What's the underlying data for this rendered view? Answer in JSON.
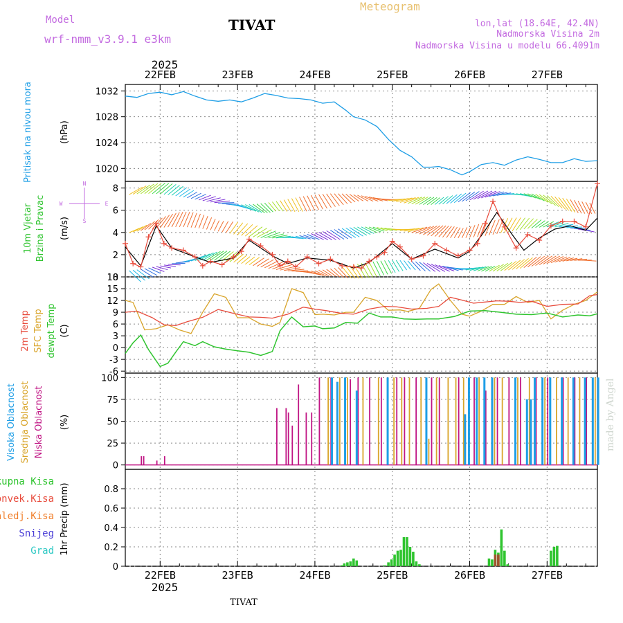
{
  "header": {
    "model_label": "Model",
    "model_name": "wrf-nmm_v3.9.1 e3km",
    "station": "TIVAT",
    "meteogram": "Meteogram",
    "lonlat": "lon,lat (18.64E, 42.4N)",
    "elevation": "Nadmorska Visina 2m",
    "model_elevation": "Nadmorska Visina u modelu 66.4091m",
    "year_top": "2025",
    "year_bottom": "2025",
    "footer_station": "TIVAT",
    "watermark": "made by Angel"
  },
  "colors": {
    "pressure": "#1e9ee6",
    "t2m": "#e84c3d",
    "sfc": "#d9a52b",
    "dew": "#2fc42f",
    "high_cloud": "#1e9ee6",
    "mid_cloud": "#d9a52b",
    "low_cloud": "#c01584",
    "precip": "#2fc42f",
    "conv": "#e84c3d",
    "frz": "#f07f2b",
    "snow": "#4b3fd6",
    "hail": "#2fc9c4",
    "wind_label": "#2fc42f",
    "compass": "#c36be0"
  },
  "chart_data": [
    {
      "type": "line",
      "panel": "pressure",
      "ylabel_title": "Pritisak na nivou mora",
      "ylabel_unit": "(hPa)",
      "ylim": [
        1018,
        1033
      ],
      "yticks": [
        1020,
        1024,
        1028,
        1032
      ],
      "x_unit": "days from 22FEB 00UTC",
      "xlim": [
        -0.45,
        5.65
      ],
      "series": [
        {
          "name": "Pressure",
          "x": [
            -0.45,
            -0.3,
            -0.15,
            0,
            0.15,
            0.3,
            0.45,
            0.6,
            0.75,
            0.9,
            1.05,
            1.2,
            1.35,
            1.5,
            1.65,
            1.8,
            1.95,
            2.1,
            2.25,
            2.4,
            2.5,
            2.65,
            2.8,
            2.95,
            3.1,
            3.25,
            3.4,
            3.5,
            3.6,
            3.75,
            3.9,
            4.0,
            4.15,
            4.3,
            4.45,
            4.6,
            4.75,
            4.9,
            5.05,
            5.2,
            5.35,
            5.5,
            5.65
          ],
          "values": [
            1031.2,
            1031.0,
            1031.6,
            1031.8,
            1031.4,
            1031.9,
            1031.2,
            1030.6,
            1030.4,
            1030.6,
            1030.3,
            1030.9,
            1031.6,
            1031.3,
            1030.9,
            1030.8,
            1030.6,
            1030.1,
            1030.3,
            1029.0,
            1028.0,
            1027.5,
            1026.5,
            1024.5,
            1022.8,
            1021.8,
            1020.2,
            1020.2,
            1020.3,
            1019.8,
            1019.0,
            1019.5,
            1020.6,
            1020.9,
            1020.5,
            1021.3,
            1021.8,
            1021.4,
            1020.9,
            1020.9,
            1021.5,
            1021.1,
            1021.2
          ]
        }
      ]
    },
    {
      "type": "line",
      "panel": "wind",
      "ylabel_title": "10m Vjetar",
      "ylabel_sub": "Brzina i Pravac",
      "ylabel_unit": "(m/s)",
      "compass": [
        "N",
        "W",
        "E",
        "S"
      ],
      "ylim": [
        0,
        8.6
      ],
      "yticks": [
        0,
        2,
        4,
        6,
        8
      ],
      "xlim": [
        -0.45,
        5.65
      ],
      "series": [
        {
          "name": "Wind speed",
          "x": [
            -0.45,
            -0.35,
            -0.25,
            -0.15,
            -0.05,
            0.05,
            0.15,
            0.3,
            0.45,
            0.55,
            0.65,
            0.8,
            0.95,
            1.05,
            1.15,
            1.3,
            1.45,
            1.55,
            1.65,
            1.75,
            1.9,
            2.05,
            2.2,
            2.35,
            2.5,
            2.6,
            2.7,
            2.8,
            2.9,
            3.0,
            3.1,
            3.25,
            3.4,
            3.55,
            3.7,
            3.85,
            4.0,
            4.1,
            4.2,
            4.3,
            4.45,
            4.6,
            4.75,
            4.9,
            5.05,
            5.2,
            5.35,
            5.5,
            5.65
          ],
          "values": [
            3.0,
            1.2,
            0.9,
            3.6,
            4.8,
            3.0,
            2.6,
            2.4,
            1.8,
            1.0,
            1.4,
            1.1,
            1.8,
            2.3,
            3.4,
            2.8,
            2.0,
            1.0,
            1.4,
            0.9,
            1.8,
            1.2,
            1.6,
            1.0,
            0.9,
            0.8,
            1.4,
            1.8,
            2.2,
            3.2,
            2.7,
            1.6,
            1.9,
            3.0,
            2.4,
            1.9,
            2.4,
            3.0,
            4.8,
            6.8,
            4.5,
            2.6,
            3.8,
            3.3,
            4.6,
            5.0,
            5.0,
            4.5,
            8.4
          ]
        },
        {
          "name": "Wind speed (model)",
          "x": [
            -0.45,
            -0.25,
            -0.05,
            0.15,
            0.45,
            0.65,
            0.95,
            1.15,
            1.45,
            1.65,
            1.9,
            2.2,
            2.5,
            2.7,
            3.0,
            3.25,
            3.55,
            3.85,
            4.0,
            4.2,
            4.35,
            4.55,
            4.7,
            4.9,
            5.1,
            5.3,
            5.5,
            5.65
          ],
          "values": [
            2.7,
            1.0,
            4.6,
            2.6,
            1.8,
            1.3,
            1.7,
            3.3,
            1.9,
            1.2,
            1.7,
            1.5,
            0.8,
            1.3,
            3.0,
            1.6,
            2.5,
            1.7,
            2.3,
            4.2,
            5.8,
            3.8,
            2.4,
            3.5,
            4.3,
            4.6,
            4.2,
            5.3
          ]
        }
      ],
      "wind_rows": [
        1,
        4,
        7
      ]
    },
    {
      "type": "line",
      "panel": "temperature",
      "ylabel_t2m": "2m Temp",
      "ylabel_sfc": "SFC Temp",
      "ylabel_dew": "dewpt Temp",
      "ylabel_unit": "(C)",
      "ylim": [
        -6.5,
        18
      ],
      "yticks": [
        -6,
        -3,
        0,
        3,
        6,
        9,
        12,
        15,
        18
      ],
      "xlim": [
        -0.45,
        5.65
      ],
      "series": [
        {
          "name": "2m Temp",
          "x": [
            -0.45,
            -0.3,
            -0.1,
            0.05,
            0.2,
            0.35,
            0.55,
            0.75,
            0.95,
            1.15,
            1.3,
            1.45,
            1.65,
            1.85,
            2.0,
            2.15,
            2.35,
            2.5,
            2.7,
            2.9,
            3.05,
            3.25,
            3.45,
            3.6,
            3.75,
            3.9,
            4.05,
            4.2,
            4.35,
            4.5,
            4.65,
            4.8,
            5.0,
            5.2,
            5.4,
            5.55,
            5.65
          ],
          "values": [
            9.0,
            9.3,
            7.6,
            5.8,
            5.6,
            6.6,
            7.7,
            9.7,
            8.7,
            7.8,
            7.7,
            7.5,
            8.5,
            10.3,
            9.8,
            9.4,
            8.7,
            8.5,
            9.8,
            10.5,
            10.4,
            9.8,
            10.0,
            10.5,
            12.8,
            12.1,
            11.3,
            11.6,
            11.9,
            11.8,
            11.5,
            11.8,
            10.5,
            11.0,
            11.1,
            13.2,
            13.5
          ]
        },
        {
          "name": "SFC Temp",
          "x": [
            -0.45,
            -0.35,
            -0.2,
            -0.05,
            0.1,
            0.25,
            0.4,
            0.55,
            0.7,
            0.85,
            1.0,
            1.15,
            1.3,
            1.45,
            1.55,
            1.7,
            1.85,
            2.0,
            2.1,
            2.25,
            2.4,
            2.5,
            2.65,
            2.8,
            2.95,
            3.1,
            3.2,
            3.35,
            3.5,
            3.6,
            3.75,
            3.9,
            4.0,
            4.15,
            4.3,
            4.45,
            4.6,
            4.75,
            4.9,
            5.05,
            5.2,
            5.35,
            5.5,
            5.65
          ],
          "values": [
            12.0,
            11.5,
            4.5,
            4.8,
            5.8,
            4.5,
            3.6,
            9.0,
            13.7,
            12.8,
            7.6,
            7.6,
            6.0,
            5.4,
            6.4,
            15.0,
            14.0,
            8.4,
            8.5,
            8.3,
            9.0,
            9.0,
            12.8,
            12.0,
            9.5,
            9.6,
            9.2,
            10.0,
            14.8,
            16.2,
            12.0,
            8.5,
            8.0,
            9.3,
            11.0,
            11.0,
            13.0,
            11.5,
            12.0,
            7.3,
            9.5,
            11.0,
            12.0,
            14.2
          ]
        },
        {
          "name": "Dewpoint",
          "x": [
            -0.45,
            -0.35,
            -0.25,
            -0.15,
            0.0,
            0.1,
            0.2,
            0.3,
            0.45,
            0.55,
            0.7,
            0.85,
            1.0,
            1.15,
            1.3,
            1.45,
            1.55,
            1.7,
            1.85,
            2.0,
            2.1,
            2.25,
            2.4,
            2.55,
            2.7,
            2.85,
            3.0,
            3.15,
            3.3,
            3.45,
            3.6,
            3.8,
            4.0,
            4.2,
            4.4,
            4.6,
            4.8,
            5.0,
            5.2,
            5.4,
            5.55,
            5.65
          ],
          "values": [
            -1.5,
            1.2,
            3.2,
            -0.5,
            -4.8,
            -4.0,
            -1.2,
            1.5,
            0.5,
            1.5,
            0.2,
            -0.4,
            -0.8,
            -1.2,
            -2.0,
            -1.0,
            4.3,
            7.8,
            5.3,
            5.5,
            4.8,
            5.0,
            6.4,
            6.2,
            8.8,
            7.8,
            7.8,
            7.3,
            7.2,
            7.3,
            7.3,
            7.9,
            9.3,
            9.4,
            9.0,
            8.5,
            8.4,
            8.8,
            7.8,
            8.3,
            8.1,
            8.6
          ]
        }
      ]
    },
    {
      "type": "bar",
      "panel": "cloud",
      "ylabel_high": "Visoka Oblacnost",
      "ylabel_mid": "Srednja Oblacnost",
      "ylabel_low": "Niska Oblacnost",
      "ylabel_unit": "(%)",
      "ylim": [
        -5,
        105
      ],
      "yticks": [
        0,
        25,
        50,
        75,
        100
      ],
      "xlim": [
        -0.45,
        5.65
      ],
      "series": [
        {
          "name": "Low cloud",
          "x": [
            -0.25,
            -0.22,
            -0.05,
            0.05,
            1.5,
            1.62,
            1.65,
            1.7,
            1.78,
            1.88,
            1.95,
            2.05,
            2.2,
            2.45,
            2.55,
            2.7,
            2.85,
            3.05,
            3.15,
            3.3,
            3.5,
            3.6,
            3.85,
            4.05,
            4.2,
            4.35,
            4.5,
            4.65,
            4.85,
            5.0,
            5.2,
            5.35,
            5.5
          ],
          "values": [
            10,
            10,
            5,
            10,
            65,
            65,
            60,
            45,
            92,
            60,
            60,
            100,
            100,
            98,
            100,
            100,
            100,
            100,
            100,
            100,
            100,
            100,
            100,
            100,
            85,
            100,
            100,
            100,
            100,
            100,
            100,
            100,
            100
          ]
        },
        {
          "name": "Mid cloud",
          "x": [
            2.15,
            2.3,
            2.4,
            2.6,
            2.8,
            3.0,
            3.1,
            3.2,
            3.35,
            3.45,
            3.55,
            3.7,
            3.8,
            3.9,
            4.1,
            4.3,
            4.4,
            4.6,
            4.75,
            4.95,
            5.1,
            5.25,
            5.4,
            5.6
          ],
          "values": [
            100,
            100,
            100,
            100,
            100,
            100,
            100,
            100,
            100,
            30,
            100,
            100,
            100,
            100,
            100,
            100,
            100,
            100,
            100,
            100,
            100,
            100,
            100,
            100
          ]
        },
        {
          "name": "High cloud",
          "x": [
            2.18,
            2.25,
            2.35,
            2.5,
            2.9,
            3.4,
            3.9,
            3.95,
            4.05,
            4.15,
            4.25,
            4.55,
            4.7,
            4.75,
            4.8,
            4.9,
            5.0,
            5.15,
            5.3,
            5.45,
            5.55,
            5.62
          ],
          "values": [
            100,
            95,
            100,
            85,
            100,
            100,
            58,
            100,
            100,
            100,
            100,
            100,
            75,
            75,
            100,
            100,
            100,
            100,
            100,
            100,
            100,
            100
          ]
        }
      ]
    },
    {
      "type": "bar",
      "panel": "precip",
      "ylabel_unit": "1hr Precip (mm)",
      "legend": [
        "Ukupna Kisa",
        "Konvek.Kisa",
        "Zaledj.Kisa",
        "Snijeg",
        "Grad"
      ],
      "ylim": [
        0,
        1.0
      ],
      "yticks": [
        0,
        0.2,
        0.4,
        0.6,
        0.8
      ],
      "xlim": [
        -0.45,
        5.65
      ],
      "series": [
        {
          "name": "Ukupna Kisa",
          "x": [
            2.35,
            2.38,
            2.42,
            2.46,
            2.5,
            2.54,
            2.9,
            2.95,
            2.99,
            3.03,
            3.07,
            3.11,
            3.15,
            3.19,
            3.23,
            3.27,
            3.31,
            3.35,
            4.25,
            4.29,
            4.33,
            4.37,
            4.41,
            4.45,
            4.49,
            5.05,
            5.09,
            5.13
          ],
          "values": [
            0.01,
            0.03,
            0.04,
            0.05,
            0.08,
            0.06,
            0.01,
            0.04,
            0.07,
            0.12,
            0.16,
            0.17,
            0.3,
            0.3,
            0.2,
            0.15,
            0.05,
            0.02,
            0.08,
            0.07,
            0.17,
            0.14,
            0.38,
            0.16,
            0.02,
            0.16,
            0.2,
            0.21
          ]
        },
        {
          "name": "Konvek.Kisa",
          "x": [
            4.33,
            4.37
          ],
          "values": [
            0.12,
            0.12
          ]
        }
      ]
    }
  ],
  "xaxis": {
    "days": [
      "22FEB",
      "23FEB",
      "24FEB",
      "25FEB",
      "26FEB",
      "27FEB"
    ]
  }
}
